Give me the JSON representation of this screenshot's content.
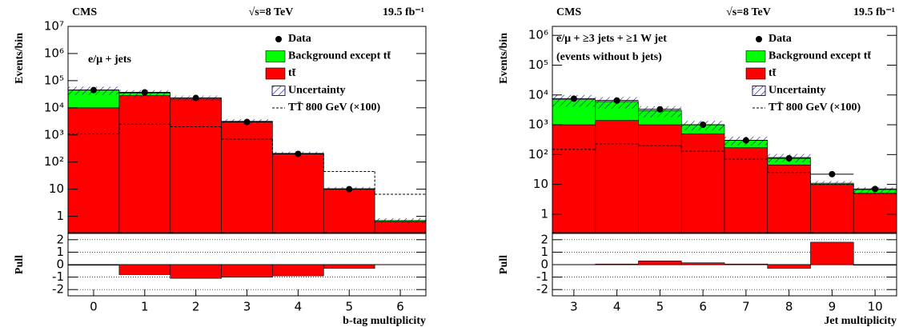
{
  "chart_data": [
    {
      "type": "stacked_bar",
      "experiment": "CMS",
      "energy": "√s=8 TeV",
      "luminosity": "19.5 fb⁻¹",
      "annotation": [
        "e/μ + jets"
      ],
      "ylabel": "Events/bin",
      "log_scale": true,
      "ylim": [
        0.25,
        10000000
      ],
      "yticks": [
        1,
        10,
        {
          "value": 100,
          "label": "10²"
        },
        {
          "value": 1000,
          "label": "10³"
        },
        {
          "value": 10000,
          "label": "10⁴"
        },
        {
          "value": 100000,
          "label": "10⁵"
        },
        {
          "value": 1000000,
          "label": "10⁶"
        },
        {
          "value": 10000000,
          "label": "10⁷"
        }
      ],
      "categories": [
        "0",
        "1",
        "2",
        "3",
        "4",
        "5",
        "6"
      ],
      "data": {
        "name": "Data",
        "values": [
          45000,
          37000,
          23000,
          3000,
          200,
          10,
          null
        ]
      },
      "series": [
        {
          "name": "tt̄",
          "color": "#ff0000",
          "values": [
            10000,
            28000,
            21000,
            3000,
            200,
            10,
            0.65
          ]
        },
        {
          "name": "Background except tt̄",
          "color": "#00ff00",
          "values": [
            35000,
            7000,
            2000,
            200,
            10,
            0.5,
            0.05
          ]
        }
      ],
      "uncertainty": {
        "name": "Uncertainty",
        "values": [
          15000,
          10000,
          5000,
          600,
          30,
          1.5,
          0.15
        ]
      },
      "signal": {
        "name": "TT̄ 800 GeV (×100)",
        "values": [
          1100,
          2500,
          2000,
          700,
          200,
          45,
          6.5
        ]
      }
    },
    {
      "type": "bar",
      "ylabel": "Pull",
      "xlabel": "b-tag multiplicity",
      "color": "#ff0000",
      "values": [
        -0.05,
        -0.8,
        -1.1,
        -1.0,
        -0.9,
        -0.3,
        0
      ],
      "ylim": [
        -2.5,
        2.5
      ],
      "yticks": [
        -2,
        -1,
        0,
        1,
        2
      ],
      "grid": true
    },
    {
      "type": "stacked_bar",
      "experiment": "CMS",
      "energy": "√s=8 TeV",
      "luminosity": "19.5 fb⁻¹",
      "annotation": [
        "e/μ + ≥3 jets + ≥1 W jet",
        "(events without b jets)"
      ],
      "ylabel": "Events/bin",
      "log_scale": true,
      "ylim": [
        0.24,
        2000000
      ],
      "yticks": [
        1,
        10,
        {
          "value": 100,
          "label": "10²"
        },
        {
          "value": 1000,
          "label": "10³"
        },
        {
          "value": 10000,
          "label": "10⁴"
        },
        {
          "value": 100000,
          "label": "10⁵"
        },
        {
          "value": 1000000,
          "label": "10⁶"
        }
      ],
      "categories": [
        "3",
        "4",
        "5",
        "6",
        "7",
        "8",
        "9",
        "10"
      ],
      "data": {
        "name": "Data",
        "values": [
          7500,
          6500,
          3300,
          1000,
          300,
          75,
          22,
          7
        ]
      },
      "series": [
        {
          "name": "tt̄",
          "color": "#ff0000",
          "values": [
            1000,
            1400,
            1000,
            500,
            170,
            45,
            10,
            5
          ]
        },
        {
          "name": "Background except tt̄",
          "color": "#00ff00",
          "values": [
            6000,
            4600,
            2000,
            500,
            130,
            35,
            1,
            1.5
          ]
        }
      ],
      "uncertainty": {
        "name": "Uncertainty",
        "values": [
          3000,
          2500,
          1200,
          350,
          100,
          25,
          2,
          1.5
        ]
      },
      "signal": {
        "name": "TT̄ 800 GeV (×100)",
        "values": [
          150,
          230,
          200,
          130,
          70,
          25,
          10,
          5
        ]
      }
    },
    {
      "type": "bar",
      "ylabel": "Pull",
      "xlabel": "Jet multiplicity",
      "color": "#ff0000",
      "values": [
        0,
        0.05,
        0.3,
        0.15,
        0.05,
        -0.3,
        1.8,
        -0.05
      ],
      "ylim": [
        -2.5,
        2.5
      ],
      "yticks": [
        -2,
        -1,
        0,
        1,
        2
      ],
      "grid": true
    }
  ]
}
